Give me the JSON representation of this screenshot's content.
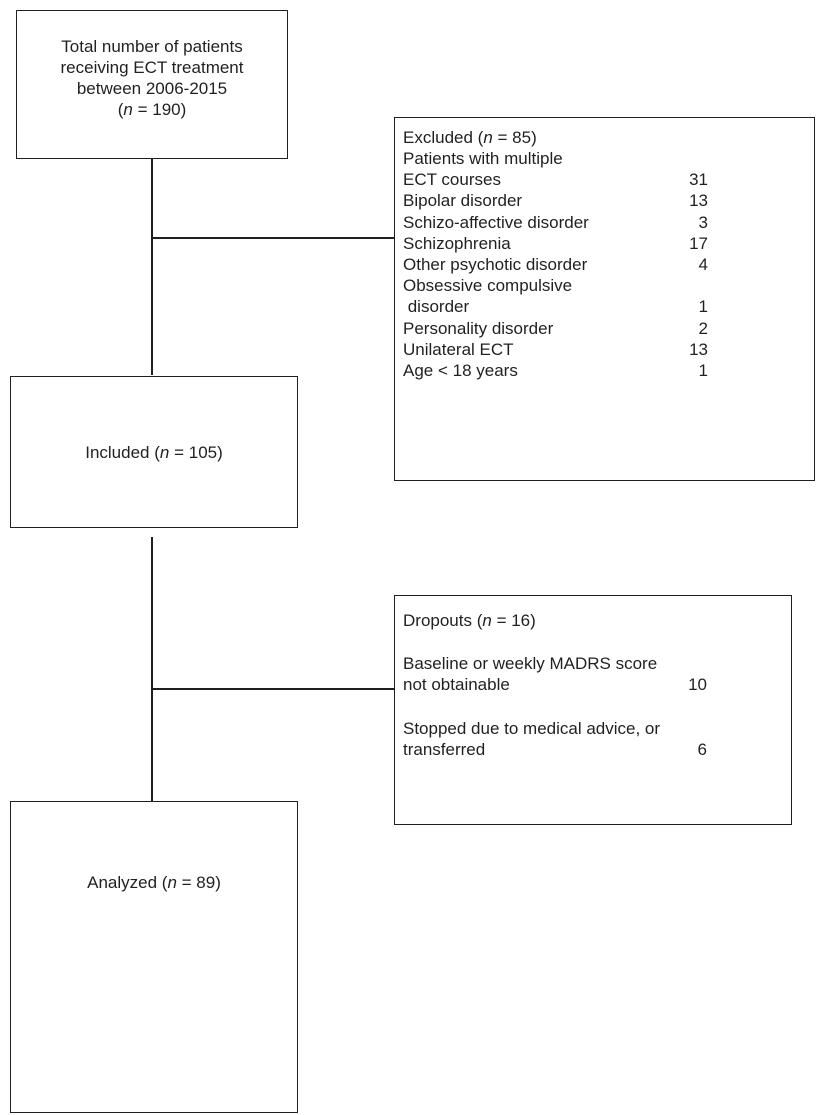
{
  "total_box": {
    "lines": [
      "Total number of patients",
      "receiving ECT treatment",
      "between 2006-2015"
    ],
    "n_prefix": "(",
    "n_var": "n",
    "n_suffix": " = 190)"
  },
  "excluded_box": {
    "title_prefix": "Excluded  (",
    "title_var": "n",
    "title_suffix": " = 85)",
    "items": [
      {
        "label": "Patients with multiple",
        "value": ""
      },
      {
        "label": "ECT courses",
        "value": "31"
      },
      {
        "label": "Bipolar disorder",
        "value": "13"
      },
      {
        "label": "Schizo-affective disorder",
        "value": "3"
      },
      {
        "label": "Schizophrenia",
        "value": "17"
      },
      {
        "label": "Other psychotic disorder",
        "value": "4"
      },
      {
        "label": "Obsessive compulsive",
        "value": ""
      },
      {
        "label": " disorder",
        "value": "1"
      },
      {
        "label": "Personality disorder",
        "value": "2"
      },
      {
        "label": "Unilateral ECT",
        "value": "13"
      },
      {
        "label": "Age < 18 years",
        "value": "1"
      }
    ]
  },
  "included_box": {
    "prefix": "Included (",
    "var": "n",
    "suffix": " = 105)"
  },
  "dropouts_box": {
    "title_prefix": "Dropouts (",
    "title_var": "n",
    "title_suffix": " = 16)",
    "reason1_line1": "Baseline or weekly MADRS score",
    "reason1_line2": "not obtainable",
    "reason1_value": "10",
    "reason2_line1": "Stopped due to medical advice, or",
    "reason2_line2": "transferred",
    "reason2_value": "6"
  },
  "analyzed_box": {
    "prefix": "Analyzed (",
    "var": "n",
    "suffix": " = 89)"
  }
}
